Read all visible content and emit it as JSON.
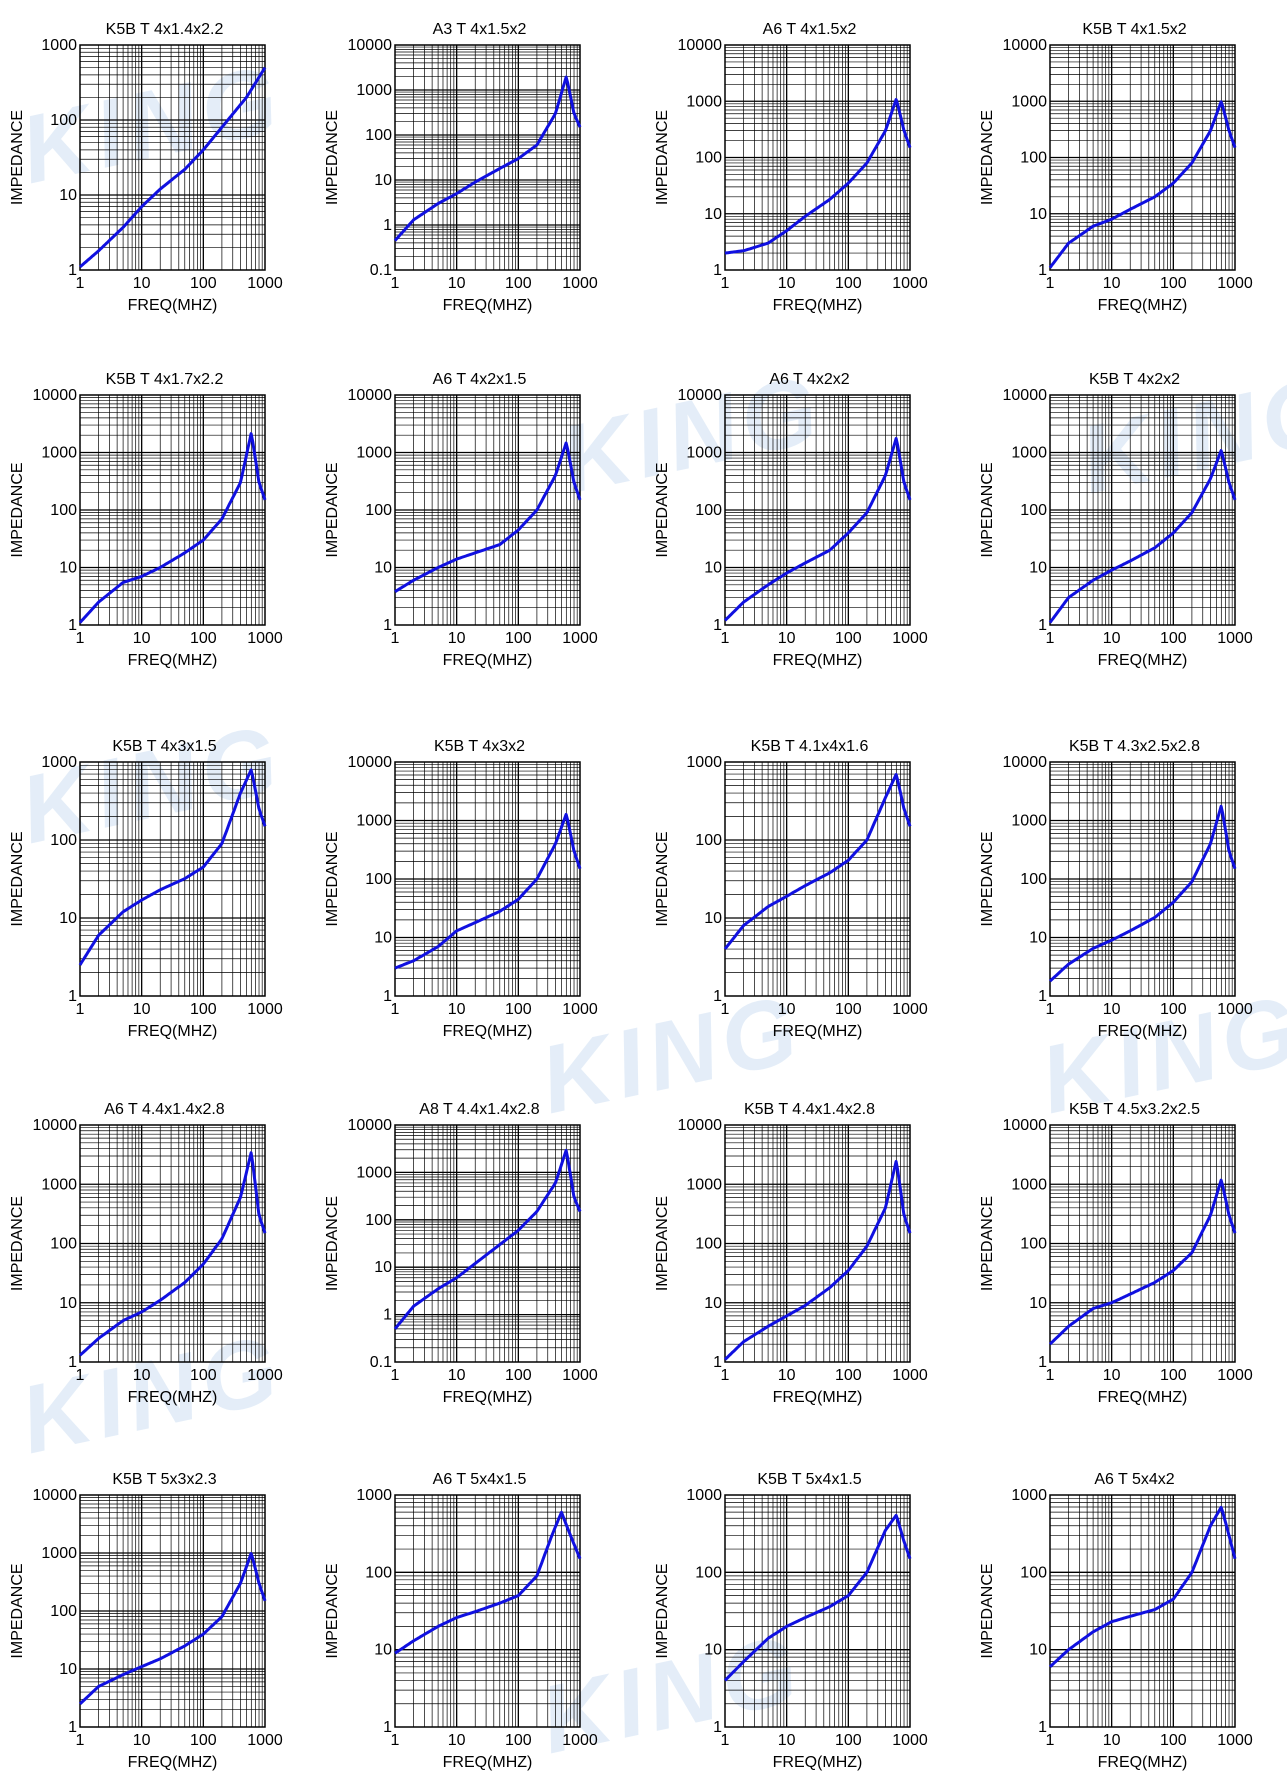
{
  "watermark": "KING",
  "curve_color": "#1010e0",
  "grid_color": "#000000",
  "chart_data": [
    {
      "type": "line",
      "title": "K5B T 4x1.4x2.2",
      "xlabel": "FREQ(MHZ)",
      "ylabel": "IMPEDANCE",
      "xlim": [
        1,
        1000
      ],
      "ylim": [
        1,
        1000
      ],
      "x_scale": "log",
      "y_scale": "log",
      "grid": true,
      "xticks": [
        "1",
        "10",
        "100",
        "1000"
      ],
      "yticks": [
        "1",
        "10",
        "100",
        "1000"
      ],
      "x": [
        1,
        2,
        5,
        10,
        20,
        50,
        100,
        200,
        500,
        1000
      ],
      "y": [
        1.1,
        1.8,
        3.7,
        7,
        12,
        22,
        40,
        80,
        200,
        500
      ]
    },
    {
      "type": "line",
      "title": "A3 T 4x1.5x2",
      "xlabel": "FREQ(MHZ)",
      "ylabel": "IMPEDANCE",
      "xlim": [
        1,
        1000
      ],
      "ylim": [
        0.1,
        10000
      ],
      "x_scale": "log",
      "y_scale": "log",
      "grid": true,
      "xticks": [
        "1",
        "10",
        "100",
        "1000"
      ],
      "yticks": [
        "0.1",
        "1",
        "10",
        "100",
        "1000",
        "10000"
      ],
      "x": [
        1,
        2,
        5,
        10,
        20,
        50,
        100,
        200,
        400,
        600,
        800,
        1000
      ],
      "y": [
        0.45,
        1.3,
        3,
        5,
        9,
        18,
        30,
        60,
        300,
        2000,
        300,
        150
      ]
    },
    {
      "type": "line",
      "title": "A6 T 4x1.5x2",
      "xlabel": "FREQ(MHZ)",
      "ylabel": "IMPEDANCE",
      "xlim": [
        1,
        1000
      ],
      "ylim": [
        1,
        10000
      ],
      "x_scale": "log",
      "y_scale": "log",
      "grid": true,
      "xticks": [
        "1",
        "10",
        "100",
        "1000"
      ],
      "yticks": [
        "1",
        "10",
        "100",
        "1000",
        "10000"
      ],
      "x": [
        1,
        2,
        5,
        10,
        20,
        50,
        100,
        200,
        400,
        600,
        800,
        1000
      ],
      "y": [
        2,
        2.2,
        3,
        5,
        9,
        18,
        35,
        80,
        300,
        1100,
        300,
        150
      ]
    },
    {
      "type": "line",
      "title": "K5B T 4x1.5x2",
      "xlabel": "FREQ(MHZ)",
      "ylabel": "IMPEDANCE",
      "xlim": [
        1,
        1000
      ],
      "ylim": [
        1,
        10000
      ],
      "x_scale": "log",
      "y_scale": "log",
      "grid": true,
      "xticks": [
        "1",
        "10",
        "100",
        "1000"
      ],
      "yticks": [
        "1",
        "10",
        "100",
        "1000",
        "10000"
      ],
      "x": [
        1,
        2,
        5,
        10,
        20,
        50,
        100,
        200,
        400,
        600,
        800,
        1000
      ],
      "y": [
        1.1,
        3,
        6,
        8,
        12,
        20,
        35,
        80,
        300,
        1000,
        300,
        150
      ]
    },
    {
      "type": "line",
      "title": "K5B T 4x1.7x2.2",
      "xlabel": "FREQ(MHZ)",
      "ylabel": "IMPEDANCE",
      "xlim": [
        1,
        1000
      ],
      "ylim": [
        1,
        10000
      ],
      "x_scale": "log",
      "y_scale": "log",
      "grid": true,
      "xticks": [
        "1",
        "10",
        "100",
        "1000"
      ],
      "yticks": [
        "1",
        "10",
        "100",
        "1000",
        "10000"
      ],
      "x": [
        1,
        2,
        5,
        10,
        20,
        50,
        100,
        200,
        400,
        600,
        800,
        1000
      ],
      "y": [
        1.1,
        2.5,
        5.5,
        7,
        10,
        18,
        30,
        70,
        300,
        2200,
        300,
        150
      ]
    },
    {
      "type": "line",
      "title": "A6 T 4x2x1.5",
      "xlabel": "FREQ(MHZ)",
      "ylabel": "IMPEDANCE",
      "xlim": [
        1,
        1000
      ],
      "ylim": [
        1,
        10000
      ],
      "x_scale": "log",
      "y_scale": "log",
      "grid": true,
      "xticks": [
        "1",
        "10",
        "100",
        "1000"
      ],
      "yticks": [
        "1",
        "10",
        "100",
        "1000",
        "10000"
      ],
      "x": [
        1,
        2,
        5,
        10,
        20,
        50,
        100,
        200,
        400,
        600,
        800,
        1000
      ],
      "y": [
        3.8,
        6,
        10,
        14,
        18,
        25,
        45,
        100,
        400,
        1500,
        300,
        150
      ]
    },
    {
      "type": "line",
      "title": "A6 T 4x2x2",
      "xlabel": "FREQ(MHZ)",
      "ylabel": "IMPEDANCE",
      "xlim": [
        1,
        1000
      ],
      "ylim": [
        1,
        10000
      ],
      "x_scale": "log",
      "y_scale": "log",
      "grid": true,
      "xticks": [
        "1",
        "10",
        "100",
        "1000"
      ],
      "yticks": [
        "1",
        "10",
        "100",
        "1000",
        "10000"
      ],
      "x": [
        1,
        2,
        5,
        10,
        20,
        50,
        100,
        200,
        400,
        600,
        800,
        1000
      ],
      "y": [
        1.2,
        2.5,
        5,
        8,
        12,
        20,
        40,
        90,
        400,
        1800,
        300,
        150
      ]
    },
    {
      "type": "line",
      "title": "K5B T 4x2x2",
      "xlabel": "FREQ(MHZ)",
      "ylabel": "IMPEDANCE",
      "xlim": [
        1,
        1000
      ],
      "ylim": [
        1,
        10000
      ],
      "x_scale": "log",
      "y_scale": "log",
      "grid": true,
      "xticks": [
        "1",
        "10",
        "100",
        "1000"
      ],
      "yticks": [
        "1",
        "10",
        "100",
        "1000",
        "10000"
      ],
      "x": [
        1,
        2,
        5,
        10,
        20,
        50,
        100,
        200,
        400,
        600,
        800,
        1000
      ],
      "y": [
        1.1,
        3,
        6,
        9,
        13,
        22,
        40,
        90,
        350,
        1100,
        300,
        150
      ]
    },
    {
      "type": "line",
      "title": "K5B T 4x3x1.5",
      "xlabel": "FREQ(MHZ)",
      "ylabel": "IMPEDANCE",
      "xlim": [
        1,
        1000
      ],
      "ylim": [
        1,
        1000
      ],
      "x_scale": "log",
      "y_scale": "log",
      "grid": true,
      "xticks": [
        "1",
        "10",
        "100",
        "1000"
      ],
      "yticks": [
        "1",
        "10",
        "100",
        "1000"
      ],
      "x": [
        1,
        2,
        5,
        10,
        20,
        50,
        100,
        200,
        400,
        600,
        800,
        1000
      ],
      "y": [
        2.5,
        6,
        12,
        17,
        23,
        32,
        45,
        90,
        400,
        800,
        250,
        150
      ]
    },
    {
      "type": "line",
      "title": "K5B T 4x3x2",
      "xlabel": "FREQ(MHZ)",
      "ylabel": "IMPEDANCE",
      "xlim": [
        1,
        1000
      ],
      "ylim": [
        1,
        10000
      ],
      "x_scale": "log",
      "y_scale": "log",
      "grid": true,
      "xticks": [
        "1",
        "10",
        "100",
        "1000"
      ],
      "yticks": [
        "1",
        "10",
        "100",
        "1000",
        "10000"
      ],
      "x": [
        1,
        2,
        5,
        10,
        20,
        50,
        100,
        200,
        400,
        600,
        800,
        1000
      ],
      "y": [
        3,
        4,
        7,
        13,
        18,
        28,
        45,
        100,
        400,
        1300,
        300,
        150
      ]
    },
    {
      "type": "line",
      "title": "K5B T 4.1x4x1.6",
      "xlabel": "FREQ(MHZ)",
      "ylabel": "IMPEDANCE",
      "xlim": [
        1,
        1000
      ],
      "ylim": [
        1,
        1000
      ],
      "x_scale": "log",
      "y_scale": "log",
      "grid": true,
      "xticks": [
        "1",
        "10",
        "100",
        "1000"
      ],
      "yticks": [
        "1",
        "10",
        "100",
        "1000"
      ],
      "x": [
        1,
        2,
        5,
        10,
        20,
        50,
        100,
        200,
        400,
        600,
        800,
        1000
      ],
      "y": [
        4,
        8,
        14,
        19,
        26,
        38,
        55,
        100,
        350,
        700,
        250,
        150
      ]
    },
    {
      "type": "line",
      "title": "K5B T 4.3x2.5x2.8",
      "xlabel": "FREQ(MHZ)",
      "ylabel": "IMPEDANCE",
      "xlim": [
        1,
        1000
      ],
      "ylim": [
        1,
        10000
      ],
      "x_scale": "log",
      "y_scale": "log",
      "grid": true,
      "xticks": [
        "1",
        "10",
        "100",
        "1000"
      ],
      "yticks": [
        "1",
        "10",
        "100",
        "1000",
        "10000"
      ],
      "x": [
        1,
        2,
        5,
        10,
        20,
        50,
        100,
        200,
        400,
        600,
        800,
        1000
      ],
      "y": [
        1.8,
        3.5,
        6.5,
        9,
        13,
        22,
        40,
        90,
        400,
        1800,
        300,
        150
      ]
    },
    {
      "type": "line",
      "title": "A6 T 4.4x1.4x2.8",
      "xlabel": "FREQ(MHZ)",
      "ylabel": "IMPEDANCE",
      "xlim": [
        1,
        1000
      ],
      "ylim": [
        1,
        10000
      ],
      "x_scale": "log",
      "y_scale": "log",
      "grid": true,
      "xticks": [
        "1",
        "10",
        "100",
        "1000"
      ],
      "yticks": [
        "1",
        "10",
        "100",
        "1000",
        "10000"
      ],
      "x": [
        1,
        2,
        5,
        10,
        20,
        50,
        100,
        200,
        400,
        600,
        800,
        1000
      ],
      "y": [
        1.3,
        2.5,
        5,
        7,
        11,
        22,
        45,
        120,
        600,
        3500,
        300,
        150
      ]
    },
    {
      "type": "line",
      "title": "A8 T 4.4x1.4x2.8",
      "xlabel": "FREQ(MHZ)",
      "ylabel": "IMPEDANCE",
      "xlim": [
        1,
        1000
      ],
      "ylim": [
        0.1,
        10000
      ],
      "x_scale": "log",
      "y_scale": "log",
      "grid": true,
      "xticks": [
        "1",
        "10",
        "100",
        "1000"
      ],
      "yticks": [
        "0.1",
        "1",
        "10",
        "100",
        "1000",
        "10000"
      ],
      "x": [
        1,
        2,
        5,
        10,
        20,
        50,
        100,
        200,
        400,
        600,
        800,
        1000
      ],
      "y": [
        0.5,
        1.5,
        3.5,
        6,
        12,
        30,
        60,
        150,
        600,
        3000,
        300,
        150
      ]
    },
    {
      "type": "line",
      "title": "K5B T 4.4x1.4x2.8",
      "xlabel": "FREQ(MHZ)",
      "ylabel": "IMPEDANCE",
      "xlim": [
        1,
        1000
      ],
      "ylim": [
        1,
        10000
      ],
      "x_scale": "log",
      "y_scale": "log",
      "grid": true,
      "xticks": [
        "1",
        "10",
        "100",
        "1000"
      ],
      "yticks": [
        "1",
        "10",
        "100",
        "1000",
        "10000"
      ],
      "x": [
        1,
        2,
        5,
        10,
        20,
        50,
        100,
        200,
        400,
        600,
        800,
        1000
      ],
      "y": [
        1.1,
        2.2,
        4,
        6,
        9,
        18,
        35,
        90,
        400,
        2500,
        300,
        150
      ]
    },
    {
      "type": "line",
      "title": "K5B T 4.5x3.2x2.5",
      "xlabel": "FREQ(MHZ)",
      "ylabel": "IMPEDANCE",
      "xlim": [
        1,
        1000
      ],
      "ylim": [
        1,
        10000
      ],
      "x_scale": "log",
      "y_scale": "log",
      "grid": true,
      "xticks": [
        "1",
        "10",
        "100",
        "1000"
      ],
      "yticks": [
        "1",
        "10",
        "100",
        "1000",
        "10000"
      ],
      "x": [
        1,
        2,
        5,
        10,
        20,
        50,
        100,
        200,
        400,
        600,
        800,
        1000
      ],
      "y": [
        2,
        4,
        8,
        10,
        14,
        22,
        35,
        70,
        300,
        1200,
        300,
        150
      ]
    },
    {
      "type": "line",
      "title": "K5B T 5x3x2.3",
      "xlabel": "FREQ(MHZ)",
      "ylabel": "IMPEDANCE",
      "xlim": [
        1,
        1000
      ],
      "ylim": [
        1,
        10000
      ],
      "x_scale": "log",
      "y_scale": "log",
      "grid": true,
      "xticks": [
        "1",
        "10",
        "100",
        "1000"
      ],
      "yticks": [
        "1",
        "10",
        "100",
        "1000",
        "10000"
      ],
      "x": [
        1,
        2,
        5,
        10,
        20,
        50,
        100,
        200,
        400,
        600,
        800,
        1000
      ],
      "y": [
        2.5,
        5,
        8,
        11,
        15,
        25,
        40,
        80,
        300,
        1000,
        300,
        150
      ]
    },
    {
      "type": "line",
      "title": "A6 T 5x4x1.5",
      "xlabel": "FREQ(MHZ)",
      "ylabel": "IMPEDANCE",
      "xlim": [
        1,
        1000
      ],
      "ylim": [
        1,
        1000
      ],
      "x_scale": "log",
      "y_scale": "log",
      "grid": true,
      "xticks": [
        "1",
        "10",
        "100",
        "1000"
      ],
      "yticks": [
        "1",
        "10",
        "100",
        "1000"
      ],
      "x": [
        1,
        2,
        5,
        10,
        20,
        50,
        100,
        200,
        350,
        500,
        700,
        1000
      ],
      "y": [
        9,
        13,
        20,
        26,
        31,
        40,
        50,
        90,
        300,
        600,
        300,
        150
      ]
    },
    {
      "type": "line",
      "title": "K5B T 5x4x1.5",
      "xlabel": "FREQ(MHZ)",
      "ylabel": "IMPEDANCE",
      "xlim": [
        1,
        1000
      ],
      "ylim": [
        1,
        1000
      ],
      "x_scale": "log",
      "y_scale": "log",
      "grid": true,
      "xticks": [
        "1",
        "10",
        "100",
        "1000"
      ],
      "yticks": [
        "1",
        "10",
        "100",
        "1000"
      ],
      "x": [
        1,
        2,
        5,
        10,
        20,
        50,
        100,
        200,
        400,
        600,
        800,
        1000
      ],
      "y": [
        4,
        7,
        14,
        20,
        26,
        36,
        50,
        100,
        350,
        550,
        250,
        150
      ]
    },
    {
      "type": "line",
      "title": "A6 T 5x4x2",
      "xlabel": "FREQ(MHZ)",
      "ylabel": "IMPEDANCE",
      "xlim": [
        1,
        1000
      ],
      "ylim": [
        1,
        1000
      ],
      "x_scale": "log",
      "y_scale": "log",
      "grid": true,
      "xticks": [
        "1",
        "10",
        "100",
        "1000"
      ],
      "yticks": [
        "1",
        "10",
        "100",
        "1000"
      ],
      "x": [
        1,
        2,
        5,
        10,
        20,
        50,
        100,
        200,
        400,
        600,
        800,
        1000
      ],
      "y": [
        6,
        10,
        17,
        23,
        27,
        33,
        45,
        100,
        400,
        700,
        300,
        150
      ]
    }
  ]
}
